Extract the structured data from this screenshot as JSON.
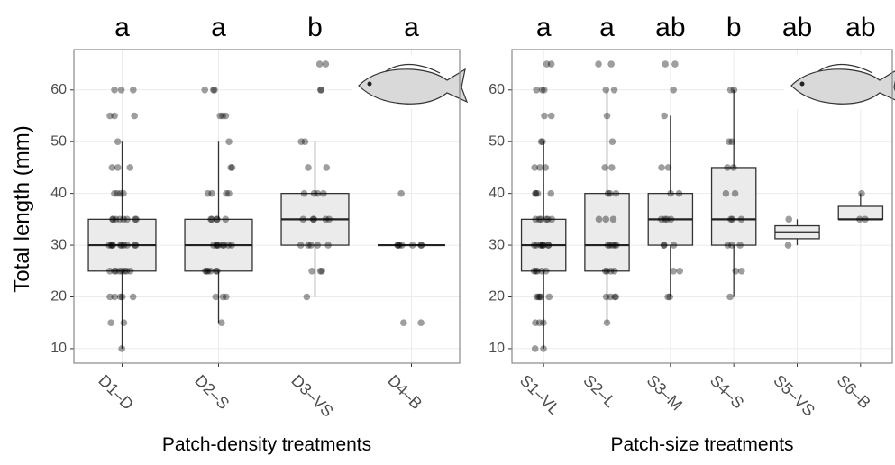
{
  "chart_data": [
    {
      "type": "box",
      "ylabel": "Total length (mm)",
      "xlabel": "Patch-density treatments",
      "categories": [
        "D1–D",
        "D2–S",
        "D3–VS",
        "D4–B"
      ],
      "letters": [
        "a",
        "a",
        "b",
        "a"
      ],
      "ylim": [
        7.2,
        67.8
      ],
      "yticks": [
        10,
        20,
        30,
        40,
        50,
        60
      ],
      "grid": true,
      "box_color": "#ebebeb",
      "point_color": "#000000",
      "boxes": [
        {
          "min": 10,
          "q1": 25,
          "median": 30,
          "q3": 35,
          "max": 50
        },
        {
          "min": 15,
          "q1": 25,
          "median": 30,
          "q3": 35,
          "max": 50
        },
        {
          "min": 20,
          "q1": 30,
          "median": 35,
          "q3": 40,
          "max": 50
        },
        {
          "min": 30,
          "q1": 30,
          "median": 30,
          "q3": 30,
          "max": 30
        }
      ],
      "points": [
        [
          10,
          15,
          15,
          20,
          20,
          20,
          20,
          20,
          25,
          25,
          25,
          25,
          25,
          25,
          25,
          25,
          30,
          30,
          30,
          30,
          30,
          30,
          30,
          30,
          30,
          30,
          35,
          35,
          35,
          35,
          35,
          35,
          35,
          35,
          40,
          40,
          40,
          40,
          45,
          45,
          45,
          50,
          55,
          55,
          55,
          60,
          60,
          60
        ],
        [
          15,
          20,
          20,
          20,
          25,
          25,
          25,
          25,
          25,
          25,
          30,
          30,
          30,
          30,
          30,
          30,
          30,
          30,
          35,
          35,
          35,
          35,
          35,
          40,
          40,
          40,
          40,
          45,
          45,
          50,
          55,
          55,
          55,
          60,
          60,
          60
        ],
        [
          20,
          25,
          25,
          25,
          30,
          30,
          30,
          30,
          30,
          35,
          35,
          35,
          35,
          35,
          40,
          40,
          40,
          40,
          45,
          45,
          50,
          50,
          60,
          60,
          65,
          65
        ],
        [
          15,
          15,
          30,
          30,
          30,
          30,
          30,
          30,
          30,
          40
        ]
      ]
    },
    {
      "type": "box",
      "xlabel": "Patch-size treatments",
      "categories": [
        "S1–VL",
        "S2–L",
        "S3–M",
        "S4–S",
        "S5–VS",
        "S6–B"
      ],
      "letters": [
        "a",
        "a",
        "ab",
        "b",
        "ab",
        "ab"
      ],
      "ylim": [
        7.2,
        67.8
      ],
      "yticks": [
        10,
        20,
        30,
        40,
        50,
        60
      ],
      "grid": true,
      "box_color": "#ebebeb",
      "point_color": "#000000",
      "boxes": [
        {
          "min": 10,
          "q1": 25,
          "median": 30,
          "q3": 35,
          "max": 50
        },
        {
          "min": 15,
          "q1": 25,
          "median": 30,
          "q3": 40,
          "max": 60
        },
        {
          "min": 20,
          "q1": 30,
          "median": 35,
          "q3": 40,
          "max": 55
        },
        {
          "min": 20,
          "q1": 30,
          "median": 35,
          "q3": 45,
          "max": 60
        },
        {
          "min": 30,
          "q1": 31.25,
          "median": 32.5,
          "q3": 33.75,
          "max": 35
        },
        {
          "min": 35,
          "q1": 35,
          "median": 35,
          "q3": 37.5,
          "max": 40
        }
      ],
      "points": [
        [
          10,
          10,
          15,
          15,
          15,
          20,
          20,
          20,
          20,
          20,
          25,
          25,
          25,
          25,
          25,
          30,
          30,
          30,
          30,
          30,
          30,
          30,
          30,
          35,
          35,
          35,
          35,
          35,
          35,
          40,
          40,
          40,
          40,
          45,
          45,
          45,
          50,
          50,
          55,
          55,
          60,
          60,
          60,
          65,
          65
        ],
        [
          15,
          20,
          20,
          20,
          20,
          25,
          25,
          25,
          25,
          30,
          30,
          30,
          30,
          30,
          35,
          35,
          35,
          40,
          40,
          40,
          45,
          45,
          50,
          55,
          60,
          60,
          65,
          65
        ],
        [
          20,
          20,
          25,
          25,
          30,
          30,
          30,
          35,
          35,
          35,
          35,
          40,
          40,
          45,
          45,
          55,
          60,
          65,
          65
        ],
        [
          20,
          25,
          25,
          30,
          30,
          30,
          35,
          35,
          35,
          40,
          40,
          45,
          45,
          50,
          50,
          60,
          60
        ],
        [
          30,
          35
        ],
        [
          35,
          35,
          40
        ]
      ]
    }
  ]
}
